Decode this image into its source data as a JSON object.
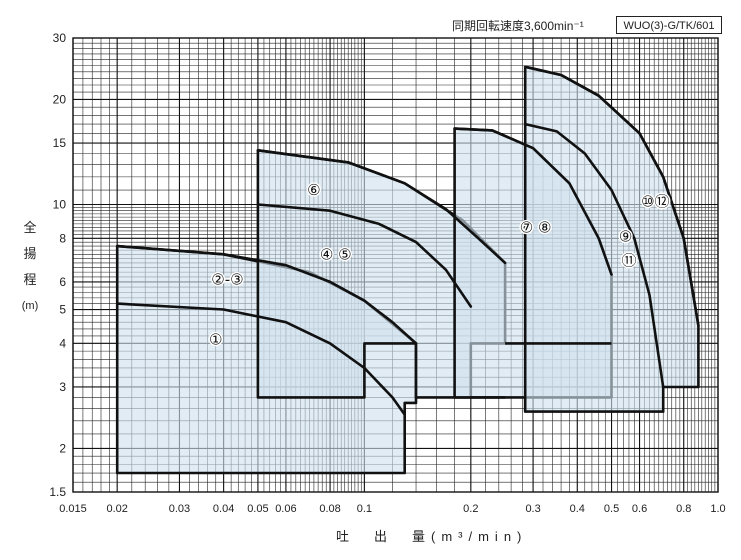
{
  "header": {
    "speed_text": "同期回転速度3,600min⁻¹",
    "model_label": "WUO(3)-G/TK/601"
  },
  "chart_data": {
    "type": "area",
    "title": "",
    "xlabel": "吐　出　量(m³/min)",
    "ylabel_chars": [
      "全",
      "揚",
      "程",
      "(m)"
    ],
    "x_scale": "log",
    "y_scale": "log",
    "xlim": [
      0.015,
      1.0
    ],
    "ylim": [
      1.5,
      30
    ],
    "grid": true,
    "x_ticks": [
      {
        "v": 0.015,
        "label": "0.015"
      },
      {
        "v": 0.02,
        "label": "0.02"
      },
      {
        "v": 0.03,
        "label": "0.03"
      },
      {
        "v": 0.04,
        "label": "0.04"
      },
      {
        "v": 0.05,
        "label": "0.05"
      },
      {
        "v": 0.06,
        "label": "0.06"
      },
      {
        "v": 0.08,
        "label": "0.08"
      },
      {
        "v": 0.1,
        "label": "0.1"
      },
      {
        "v": 0.2,
        "label": "0.2"
      },
      {
        "v": 0.3,
        "label": "0.3"
      },
      {
        "v": 0.4,
        "label": "0.4"
      },
      {
        "v": 0.5,
        "label": "0.5"
      },
      {
        "v": 0.6,
        "label": "0.6"
      },
      {
        "v": 0.8,
        "label": "0.8"
      },
      {
        "v": 1.0,
        "label": "1.0"
      }
    ],
    "y_ticks": [
      {
        "v": 1.5,
        "label": "1.5"
      },
      {
        "v": 2,
        "label": "2"
      },
      {
        "v": 3,
        "label": "3"
      },
      {
        "v": 4,
        "label": "4"
      },
      {
        "v": 5,
        "label": "5"
      },
      {
        "v": 6,
        "label": "6"
      },
      {
        "v": 8,
        "label": "8"
      },
      {
        "v": 10,
        "label": "10"
      },
      {
        "v": 15,
        "label": "15"
      },
      {
        "v": 20,
        "label": "20"
      },
      {
        "v": 30,
        "label": "30"
      }
    ],
    "regions": [
      {
        "points": [
          [
            0.02,
            1.7
          ],
          [
            0.02,
            7.6
          ],
          [
            0.04,
            7.2
          ],
          [
            0.07,
            6.4
          ],
          [
            0.1,
            5.3
          ],
          [
            0.14,
            4.0
          ],
          [
            0.14,
            2.7
          ],
          [
            0.13,
            2.7
          ],
          [
            0.13,
            1.7
          ]
        ]
      },
      {
        "points": [
          [
            0.05,
            2.8
          ],
          [
            0.05,
            14.3
          ],
          [
            0.09,
            13.2
          ],
          [
            0.13,
            11.5
          ],
          [
            0.19,
            9.0
          ],
          [
            0.25,
            6.8
          ],
          [
            0.25,
            4.0
          ],
          [
            0.2,
            4.0
          ],
          [
            0.2,
            2.8
          ],
          [
            0.14,
            2.8
          ],
          [
            0.14,
            4.0
          ],
          [
            0.1,
            4.0
          ],
          [
            0.1,
            2.8
          ]
        ]
      },
      {
        "points": [
          [
            0.18,
            2.8
          ],
          [
            0.18,
            16.5
          ],
          [
            0.23,
            16.3
          ],
          [
            0.3,
            14.5
          ],
          [
            0.38,
            11.5
          ],
          [
            0.46,
            8.0
          ],
          [
            0.5,
            6.3
          ],
          [
            0.5,
            2.8
          ]
        ]
      },
      {
        "points": [
          [
            0.285,
            2.55
          ],
          [
            0.285,
            24.8
          ],
          [
            0.36,
            23.5
          ],
          [
            0.46,
            20.5
          ],
          [
            0.6,
            16.0
          ],
          [
            0.7,
            12.0
          ],
          [
            0.8,
            8.0
          ],
          [
            0.88,
            4.5
          ],
          [
            0.88,
            3.0
          ],
          [
            0.7,
            3.0
          ],
          [
            0.7,
            2.55
          ]
        ]
      }
    ],
    "curves": [
      {
        "points": [
          [
            0.02,
            5.2
          ],
          [
            0.04,
            5.0
          ],
          [
            0.06,
            4.6
          ],
          [
            0.08,
            4.0
          ],
          [
            0.1,
            3.4
          ],
          [
            0.12,
            2.8
          ],
          [
            0.13,
            2.5
          ]
        ]
      },
      {
        "points": [
          [
            0.02,
            7.6
          ],
          [
            0.04,
            7.2
          ],
          [
            0.06,
            6.7
          ],
          [
            0.08,
            6.0
          ],
          [
            0.1,
            5.3
          ],
          [
            0.12,
            4.6
          ],
          [
            0.14,
            4.0
          ]
        ]
      },
      {
        "points": [
          [
            0.05,
            10.0
          ],
          [
            0.08,
            9.6
          ],
          [
            0.11,
            8.8
          ],
          [
            0.14,
            7.8
          ],
          [
            0.17,
            6.5
          ],
          [
            0.2,
            5.1
          ]
        ]
      },
      {
        "points": [
          [
            0.05,
            14.3
          ],
          [
            0.09,
            13.2
          ],
          [
            0.13,
            11.5
          ],
          [
            0.17,
            9.7
          ],
          [
            0.21,
            8.0
          ],
          [
            0.25,
            6.8
          ]
        ]
      },
      {
        "points": [
          [
            0.18,
            16.5
          ],
          [
            0.23,
            16.3
          ],
          [
            0.3,
            14.5
          ],
          [
            0.38,
            11.5
          ],
          [
            0.46,
            8.0
          ],
          [
            0.5,
            6.3
          ]
        ]
      },
      {
        "points": [
          [
            0.285,
            17.0
          ],
          [
            0.35,
            16.2
          ],
          [
            0.42,
            14.0
          ],
          [
            0.5,
            11.0
          ],
          [
            0.58,
            8.0
          ],
          [
            0.64,
            5.5
          ],
          [
            0.7,
            3.0
          ]
        ]
      },
      {
        "points": [
          [
            0.285,
            24.8
          ],
          [
            0.36,
            23.5
          ],
          [
            0.46,
            20.5
          ],
          [
            0.6,
            16.0
          ],
          [
            0.7,
            12.0
          ],
          [
            0.8,
            8.0
          ],
          [
            0.88,
            4.5
          ]
        ]
      }
    ],
    "extra_lines": [
      {
        "points": [
          [
            0.25,
            4.0
          ],
          [
            0.5,
            4.0
          ]
        ]
      },
      {
        "points": [
          [
            0.2,
            2.8
          ],
          [
            0.25,
            2.8
          ]
        ]
      },
      {
        "points": [
          [
            0.285,
            2.8
          ],
          [
            0.285,
            2.55
          ]
        ]
      }
    ],
    "annotations": [
      {
        "text": "①",
        "x": 0.038,
        "y": 4.1
      },
      {
        "text": "②-③",
        "x": 0.041,
        "y": 6.1
      },
      {
        "text": "④ ⑤",
        "x": 0.083,
        "y": 7.2
      },
      {
        "text": "⑥",
        "x": 0.072,
        "y": 11.0
      },
      {
        "text": "⑦ ⑧",
        "x": 0.305,
        "y": 8.6
      },
      {
        "text": "⑨",
        "x": 0.548,
        "y": 8.1
      },
      {
        "text": "⑪",
        "x": 0.56,
        "y": 6.9
      },
      {
        "text": "⑩⑫",
        "x": 0.665,
        "y": 10.2
      }
    ]
  }
}
